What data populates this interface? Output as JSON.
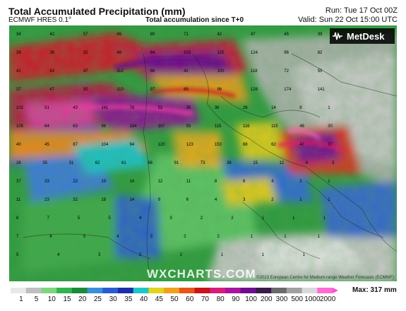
{
  "header": {
    "title": "Total Accumulated Precipitation (mm)",
    "model": "ECMWF HRES 0.1°",
    "subtitle": "Total accumulation since T+0",
    "run": "Run: Tue 17 Oct 00Z",
    "valid": "Valid: Sun 22 Oct 15:00 UTC"
  },
  "branding": {
    "logo_text": "MetDesk",
    "watermark": "WXCHARTS.COM",
    "copyright": "©2023 European Centre for Medium-range Weather Forecasts (ECMWF)"
  },
  "legend": {
    "max_label": "Max: 317 mm",
    "ticks": [
      "1",
      "5",
      "10",
      "15",
      "20",
      "25",
      "30",
      "35",
      "40",
      "45",
      "50",
      "60",
      "70",
      "80",
      "90",
      "100",
      "200",
      "300",
      "500",
      "1000",
      "2000"
    ],
    "colors": [
      "#e8e8e8",
      "#bfbfbf",
      "#7fd47f",
      "#33b34d",
      "#1a8a3a",
      "#3b8fd9",
      "#2a5bd1",
      "#1c2fa8",
      "#1fc6c6",
      "#e0d41c",
      "#f0a01a",
      "#e8541a",
      "#c8141a",
      "#d81c7c",
      "#a8149e",
      "#6e0e8e",
      "#3a1a4a",
      "#6a6a6a",
      "#a0a0a0",
      "#d8d8d8",
      "#ff6ad4"
    ]
  },
  "map_numbers": {
    "rows": [
      "34 42 57 46 80 71 42 47 45 39",
      "39 36 32 48 84 103 115 124 96 82",
      "41 43 47 112 66 42 100 118 72 50",
      "37 47 50 110 97 89 96 128 174 141",
      "102 51 43 141 78 53 35 36 26 14 8 1",
      "105 64 63 96 154 107 93 115 116 115 48 30",
      "40 45 87 104 94 120 123 153 68 62 47 37",
      "26 35 31 62 61 86 91 73 38 15 12 6 3",
      "37 33 22 19 14 12 11 8 6 4 2 1",
      "11 23 32 18 14 9 6 4 3 2 1 1",
      "8 7 5 5 4 3 2 2 1 1 1",
      "7 6 5 4 3 2 2 1 1 1",
      "5 4 3 2 2 1 1 1"
    ]
  }
}
